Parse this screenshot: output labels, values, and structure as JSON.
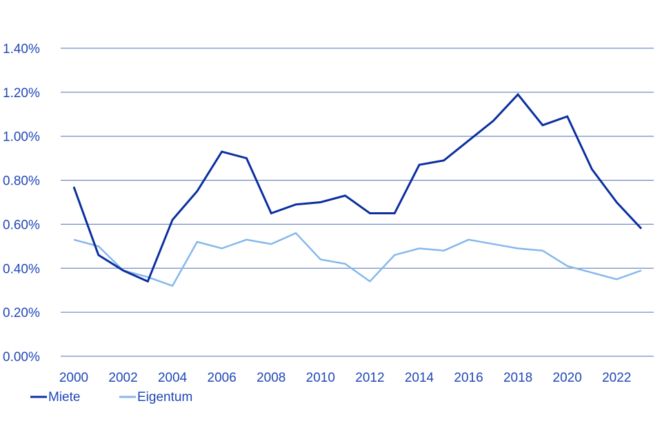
{
  "chart_data": {
    "type": "line",
    "title": "",
    "xlabel": "",
    "ylabel": "",
    "x": [
      2000,
      2001,
      2002,
      2003,
      2004,
      2005,
      2006,
      2007,
      2008,
      2009,
      2010,
      2011,
      2012,
      2013,
      2014,
      2015,
      2016,
      2017,
      2018,
      2019,
      2020,
      2021,
      2022,
      2023
    ],
    "x_ticks": [
      "2000",
      "2002",
      "2004",
      "2006",
      "2008",
      "2010",
      "2012",
      "2014",
      "2016",
      "2018",
      "2020",
      "2022"
    ],
    "x_tick_values": [
      2000,
      2002,
      2004,
      2006,
      2008,
      2010,
      2012,
      2014,
      2016,
      2018,
      2020,
      2022
    ],
    "y_ticks": [
      "0.00%",
      "0.20%",
      "0.40%",
      "0.60%",
      "0.80%",
      "1.00%",
      "1.20%",
      "1.40%"
    ],
    "y_tick_values": [
      0.0,
      0.2,
      0.4,
      0.6,
      0.8,
      1.0,
      1.2,
      1.4
    ],
    "xlim": [
      2000,
      2023
    ],
    "ylim": [
      0,
      1.4
    ],
    "grid": "horizontal",
    "legend_position": "bottom-left",
    "series": [
      {
        "name": "Miete",
        "color": "#0b2fa0",
        "values": [
          0.77,
          0.46,
          0.39,
          0.34,
          0.62,
          0.75,
          0.93,
          0.9,
          0.65,
          0.69,
          0.7,
          0.73,
          0.65,
          0.65,
          0.87,
          0.89,
          0.98,
          1.07,
          1.19,
          1.05,
          1.09,
          0.85,
          0.7,
          0.58
        ]
      },
      {
        "name": "Eigentum",
        "color": "#85b8ec",
        "values": [
          0.53,
          0.5,
          0.39,
          0.36,
          0.32,
          0.52,
          0.49,
          0.53,
          0.51,
          0.56,
          0.44,
          0.42,
          0.34,
          0.46,
          0.49,
          0.48,
          0.53,
          0.51,
          0.49,
          0.48,
          0.41,
          0.38,
          0.35,
          0.39
        ]
      }
    ],
    "colors": {
      "axis_text": "#1f47b8",
      "grid": "#4f6fb8"
    }
  }
}
